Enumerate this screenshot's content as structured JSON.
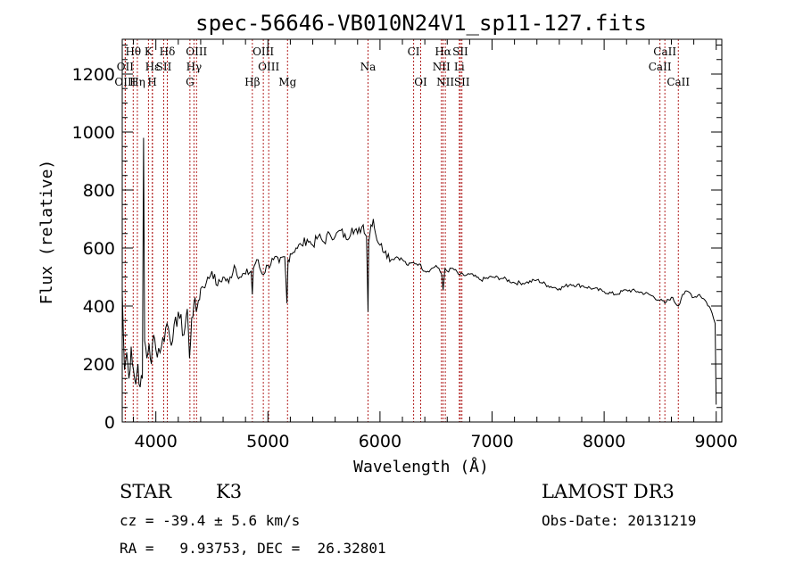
{
  "chart_data": {
    "type": "line",
    "title": "spec-56646-VB010N24V1_sp11-127.fits",
    "xlabel": "Wavelength (Å)",
    "ylabel": "Flux (relative)",
    "xlim": [
      3700,
      9050
    ],
    "ylim": [
      0,
      1320
    ],
    "x_ticks": [
      4000,
      5000,
      6000,
      7000,
      8000,
      9000
    ],
    "x_tick_labels": [
      "4000",
      "5000",
      "6000",
      "7000",
      "8000",
      "9000"
    ],
    "y_ticks": [
      0,
      200,
      400,
      600,
      800,
      1000,
      1200
    ],
    "y_tick_labels": [
      "0",
      "200",
      "400",
      "600",
      "800",
      "1000",
      "1200"
    ],
    "series": [
      {
        "name": "spectrum",
        "x": [
          3700,
          3710,
          3720,
          3740,
          3760,
          3780,
          3800,
          3820,
          3840,
          3860,
          3880,
          3890,
          3900,
          3920,
          3940,
          3960,
          3980,
          4000,
          4050,
          4100,
          4150,
          4200,
          4250,
          4280,
          4300,
          4320,
          4340,
          4360,
          4380,
          4400,
          4450,
          4500,
          4550,
          4600,
          4650,
          4700,
          4750,
          4800,
          4850,
          4861,
          4870,
          4900,
          4950,
          5000,
          5050,
          5100,
          5150,
          5170,
          5180,
          5200,
          5250,
          5300,
          5350,
          5400,
          5450,
          5500,
          5550,
          5600,
          5650,
          5700,
          5750,
          5800,
          5850,
          5880,
          5893,
          5900,
          5920,
          5940,
          5960,
          6000,
          6050,
          6100,
          6150,
          6200,
          6250,
          6300,
          6350,
          6400,
          6450,
          6500,
          6550,
          6563,
          6580,
          6600,
          6650,
          6700,
          6750,
          6800,
          6900,
          7000,
          7100,
          7200,
          7300,
          7400,
          7500,
          7600,
          7700,
          7800,
          7900,
          8000,
          8100,
          8200,
          8300,
          8400,
          8498,
          8542,
          8600,
          8662,
          8700,
          8750,
          8800,
          8850,
          8900,
          8950,
          8990,
          9000
        ],
        "y": [
          450,
          300,
          180,
          240,
          150,
          260,
          180,
          130,
          200,
          120,
          150,
          980,
          280,
          220,
          270,
          200,
          300,
          250,
          260,
          340,
          280,
          380,
          300,
          390,
          220,
          360,
          410,
          380,
          420,
          460,
          480,
          520,
          470,
          500,
          480,
          540,
          500,
          510,
          520,
          440,
          530,
          560,
          510,
          540,
          560,
          550,
          570,
          410,
          560,
          580,
          600,
          610,
          630,
          610,
          640,
          620,
          650,
          640,
          660,
          630,
          670,
          650,
          680,
          640,
          380,
          620,
          680,
          700,
          650,
          610,
          590,
          560,
          570,
          560,
          540,
          550,
          545,
          520,
          525,
          540,
          510,
          455,
          530,
          520,
          530,
          510,
          505,
          510,
          490,
          500,
          495,
          480,
          480,
          490,
          470,
          460,
          475,
          470,
          460,
          450,
          440,
          455,
          450,
          440,
          420,
          410,
          430,
          400,
          440,
          450,
          430,
          440,
          420,
          390,
          340,
          60
        ]
      }
    ],
    "spectral_lines": [
      {
        "label": "Hθ",
        "wavelength": 3798,
        "row": 1
      },
      {
        "label": "K",
        "wavelength": 3934,
        "row": 1
      },
      {
        "label": "Hδ",
        "wavelength": 4102,
        "row": 1
      },
      {
        "label": "OIII",
        "wavelength": 4363,
        "row": 1
      },
      {
        "label": "OIII",
        "wavelength": 4959,
        "row": 1
      },
      {
        "label": "CI",
        "wavelength": 6300,
        "row": 1
      },
      {
        "label": "Hα",
        "wavelength": 6563,
        "row": 1
      },
      {
        "label": "SII",
        "wavelength": 6717,
        "row": 1
      },
      {
        "label": "CaII",
        "wavelength": 8542,
        "row": 1
      },
      {
        "label": "OII",
        "wavelength": 3727,
        "row": 2
      },
      {
        "label": "Hε",
        "wavelength": 3970,
        "row": 2
      },
      {
        "label": "SII",
        "wavelength": 4070,
        "row": 2
      },
      {
        "label": "Hγ",
        "wavelength": 4340,
        "row": 2
      },
      {
        "label": "OIII",
        "wavelength": 5007,
        "row": 2
      },
      {
        "label": "NII",
        "wavelength": 6548,
        "row": 2
      },
      {
        "label": "Li",
        "wavelength": 6708,
        "row": 2
      },
      {
        "label": "CaII",
        "wavelength": 8498,
        "row": 2
      },
      {
        "label": "OIII",
        "wavelength": 3727,
        "row": 3
      },
      {
        "label": "Hη",
        "wavelength": 3835,
        "row": 3
      },
      {
        "label": "H",
        "wavelength": 3968,
        "row": 3
      },
      {
        "label": "G",
        "wavelength": 4304,
        "row": 3
      },
      {
        "label": "Hβ",
        "wavelength": 4861,
        "row": 3
      },
      {
        "label": "Mg",
        "wavelength": 5175,
        "row": 3
      },
      {
        "label": "Na",
        "wavelength": 5893,
        "row": 2
      },
      {
        "label": "OI",
        "wavelength": 6363,
        "row": 3
      },
      {
        "label": "NII",
        "wavelength": 6583,
        "row": 3
      },
      {
        "label": "SII",
        "wavelength": 6731,
        "row": 3
      },
      {
        "label": "CaII",
        "wavelength": 8662,
        "row": 3
      }
    ],
    "line_colors": {
      "spectrum": "#000000",
      "markers": "#b22222"
    }
  },
  "info": {
    "object_class": "STAR",
    "subclass": "K3",
    "survey": "LAMOST DR3",
    "redshift": "cz = -39.4 ± 5.6 km/s",
    "obs_date": "Obs-Date: 20131219",
    "coords": "RA =   9.93753, DEC =  26.32801"
  }
}
